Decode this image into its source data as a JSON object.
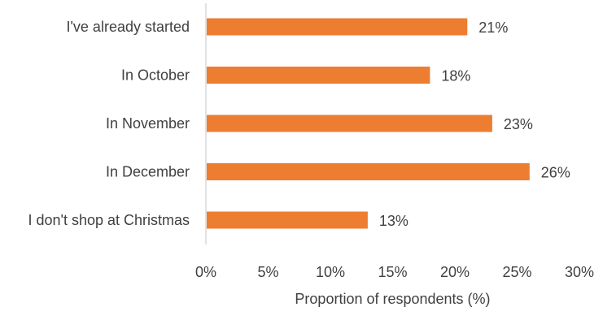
{
  "chart_data": {
    "type": "bar",
    "orientation": "horizontal",
    "categories": [
      "I've already started",
      "In October",
      "In November",
      "In December",
      "I don't shop at Christmas"
    ],
    "values": [
      21,
      18,
      23,
      26,
      13
    ],
    "data_labels": [
      "21%",
      "18%",
      "23%",
      "26%",
      "13%"
    ],
    "xlabel": "Proportion of respondents (%)",
    "ylabel": "",
    "xlim": [
      0,
      30
    ],
    "x_ticks": [
      0,
      5,
      10,
      15,
      20,
      25,
      30
    ],
    "x_tick_labels": [
      "0%",
      "5%",
      "10%",
      "15%",
      "20%",
      "25%",
      "30%"
    ],
    "grid": false,
    "legend": "none",
    "bar_color": "#ED7D31",
    "axis_color": "#D9D9D9"
  }
}
